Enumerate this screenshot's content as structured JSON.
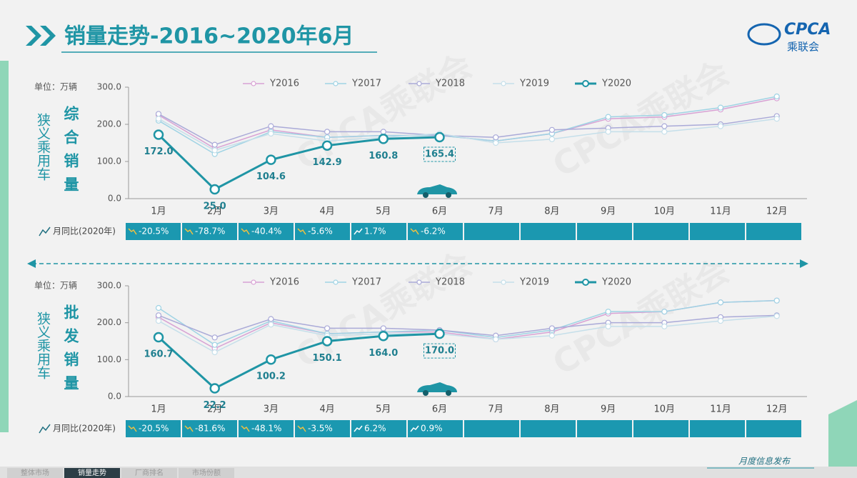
{
  "header": {
    "title": "销量走势-2016~2020年6月",
    "logo": "CPCA",
    "logo_sub": "乘联会"
  },
  "watermark": "CPCA乘联会",
  "chart_data": [
    {
      "type": "line",
      "unit": "单位：万辆",
      "side_label": "狭义乘用车",
      "title": "综合销量",
      "categories": [
        "1月",
        "2月",
        "3月",
        "4月",
        "5月",
        "6月",
        "7月",
        "8月",
        "9月",
        "10月",
        "11月",
        "12月"
      ],
      "ylim": [
        0,
        300
      ],
      "yticks": [
        {
          "value": 0,
          "label": "0.0"
        },
        {
          "value": 100,
          "label": "100.0"
        },
        {
          "value": 200,
          "label": "200.0"
        },
        {
          "value": 300,
          "label": "300.0"
        }
      ],
      "series": [
        {
          "name": "Y2016",
          "color": "#d8a2d4",
          "values": [
            225,
            135,
            185,
            165,
            170,
            170,
            155,
            175,
            215,
            220,
            240,
            270
          ]
        },
        {
          "name": "Y2017",
          "color": "#9fd3e4",
          "values": [
            210,
            120,
            180,
            165,
            170,
            170,
            155,
            175,
            220,
            225,
            245,
            275
          ]
        },
        {
          "name": "Y2018",
          "color": "#aaaad8",
          "values": [
            228,
            145,
            195,
            180,
            180,
            170,
            165,
            185,
            190,
            195,
            200,
            222
          ]
        },
        {
          "name": "Y2019",
          "color": "#c5dfea",
          "values": [
            215,
            130,
            175,
            155,
            165,
            175,
            150,
            160,
            180,
            180,
            195,
            215
          ]
        },
        {
          "name": "Y2020",
          "color": "#1f95a5",
          "values": [
            172.0,
            25.0,
            104.6,
            142.9,
            160.8,
            165.4,
            null,
            null,
            null,
            null,
            null,
            null
          ],
          "value_labels": [
            "172.0",
            "25.0",
            "104.6",
            "142.9",
            "160.8",
            "165.4",
            null,
            null,
            null,
            null,
            null,
            null
          ]
        }
      ],
      "yoy_label": "月同比(2020年)",
      "yoy": [
        "-20.5%",
        "-78.7%",
        "-40.4%",
        "-5.6%",
        "1.7%",
        "-6.2%"
      ]
    },
    {
      "type": "line",
      "unit": "单位：万辆",
      "side_label": "狭义乘用车",
      "title": "批发销量",
      "categories": [
        "1月",
        "2月",
        "3月",
        "4月",
        "5月",
        "6月",
        "7月",
        "8月",
        "9月",
        "10月",
        "11月",
        "12月"
      ],
      "ylim": [
        0,
        300
      ],
      "yticks": [
        {
          "value": 0,
          "label": "0.0"
        },
        {
          "value": 100,
          "label": "100.0"
        },
        {
          "value": 200,
          "label": "200.0"
        },
        {
          "value": 300,
          "label": "300.0"
        }
      ],
      "series": [
        {
          "name": "Y2016",
          "color": "#d8a2d4",
          "values": [
            215,
            130,
            200,
            170,
            175,
            175,
            155,
            175,
            225,
            230,
            255,
            260
          ]
        },
        {
          "name": "Y2017",
          "color": "#9fd3e4",
          "values": [
            240,
            140,
            205,
            170,
            175,
            180,
            160,
            180,
            230,
            230,
            255,
            260
          ]
        },
        {
          "name": "Y2018",
          "color": "#aaaad8",
          "values": [
            220,
            160,
            210,
            185,
            185,
            180,
            165,
            185,
            200,
            200,
            215,
            220
          ]
        },
        {
          "name": "Y2019",
          "color": "#c5dfea",
          "values": [
            205,
            120,
            195,
            165,
            170,
            170,
            155,
            165,
            190,
            190,
            205,
            218
          ]
        },
        {
          "name": "Y2020",
          "color": "#1f95a5",
          "values": [
            160.7,
            22.2,
            100.2,
            150.1,
            164.0,
            170.0,
            null,
            null,
            null,
            null,
            null,
            null
          ],
          "value_labels": [
            "160.7",
            "22.2",
            "100.2",
            "150.1",
            "164.0",
            "170.0",
            null,
            null,
            null,
            null,
            null,
            null
          ]
        }
      ],
      "yoy_label": "月同比(2020年)",
      "yoy": [
        "-20.5%",
        "-81.6%",
        "-48.1%",
        "-3.5%",
        "6.2%",
        "0.9%"
      ]
    }
  ],
  "footer": {
    "tabs": [
      "整体市场",
      "销量走势",
      "厂商排名",
      "市场份额"
    ],
    "active": 1,
    "note": "月度信息发布"
  }
}
